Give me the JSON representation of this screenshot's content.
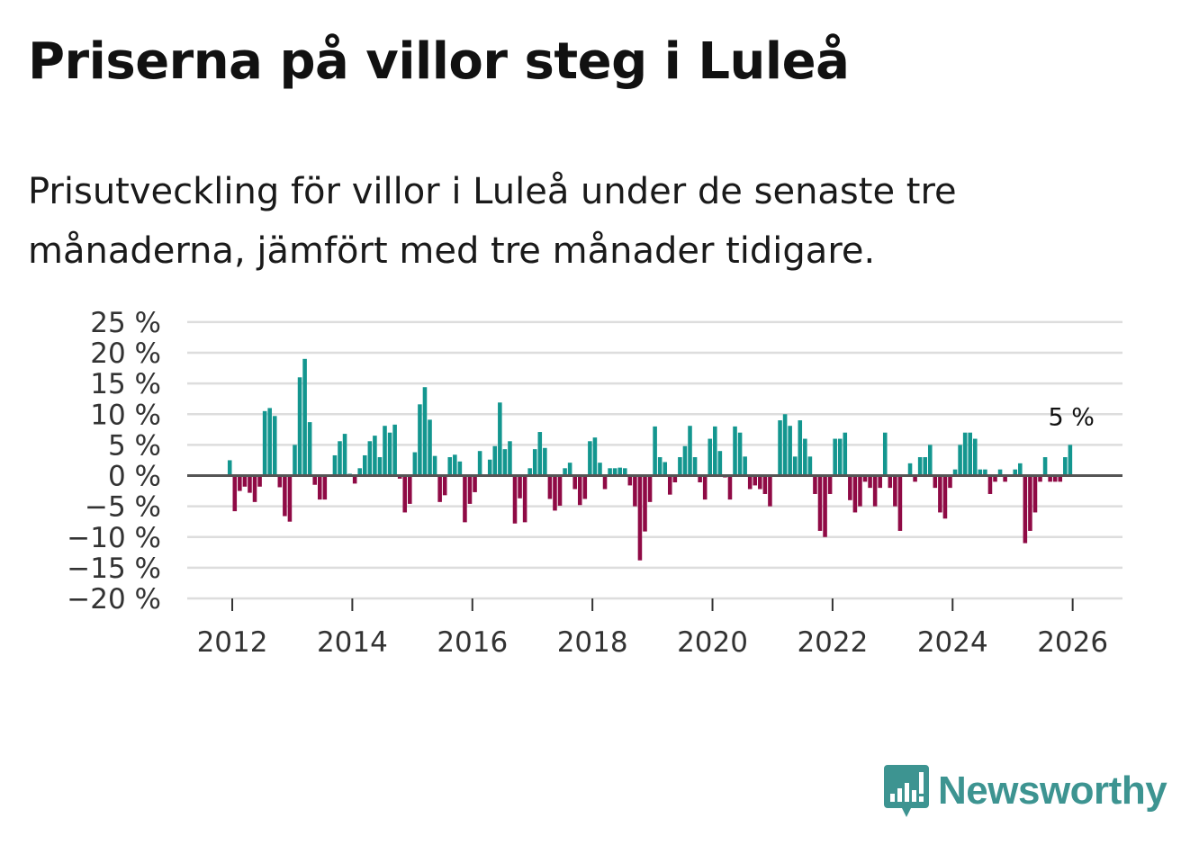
{
  "title": "Priserna på villor steg i Luleå",
  "subtitle": "Prisutveckling för villor i Luleå under de senaste tre månaderna, jämfört med tre månader tidigare.",
  "brand": {
    "name": "Newsworthy",
    "icon": "newsworthy-logo-icon",
    "color": "#3d9491"
  },
  "colors": {
    "positive": "#13968f",
    "negative": "#8f0a45",
    "zero_line": "#555555",
    "grid": "#dddddd"
  },
  "chart_data": {
    "type": "bar",
    "title": "Priserna på villor steg i Luleå",
    "xlabel": "",
    "ylabel": "",
    "ylim": [
      -20,
      25
    ],
    "y_ticks": [
      -20,
      -15,
      -10,
      -5,
      0,
      5,
      10,
      15,
      20,
      25
    ],
    "y_tick_labels": [
      "−20 %",
      "−15 %",
      "−10 %",
      "−5 %",
      "0 %",
      "5 %",
      "10 %",
      "15 %",
      "20 %",
      "25 %"
    ],
    "x_ticks": [
      2012,
      2014,
      2016,
      2018,
      2020,
      2022,
      2024,
      2026
    ],
    "x_tick_labels": [
      "2012",
      "2014",
      "2016",
      "2018",
      "2020",
      "2022",
      "2024",
      "2026"
    ],
    "x_range": [
      2011.25,
      2026.83
    ],
    "grid": true,
    "start": {
      "year": 2011,
      "month": 12
    },
    "annotation": {
      "text": "5 %",
      "target": "last"
    },
    "values": [
      2.5,
      -5.8,
      -2.5,
      -1.8,
      -2.8,
      -4.3,
      -1.8,
      10.5,
      11.0,
      9.7,
      -1.9,
      -6.6,
      -7.5,
      5.0,
      16.0,
      19.0,
      8.7,
      -1.5,
      -3.9,
      -3.9,
      0.1,
      3.3,
      5.6,
      6.8,
      0.3,
      -1.3,
      1.2,
      3.3,
      5.6,
      6.5,
      3.0,
      8.1,
      7.0,
      8.3,
      -0.5,
      -6.0,
      -4.6,
      3.8,
      11.6,
      14.4,
      9.1,
      3.2,
      -4.3,
      -3.2,
      3.0,
      3.4,
      2.3,
      -7.6,
      -4.6,
      -2.7,
      4.0,
      0.2,
      2.6,
      4.8,
      11.9,
      4.3,
      5.6,
      -7.8,
      -3.7,
      -7.6,
      1.2,
      4.3,
      7.1,
      4.5,
      -3.8,
      -5.7,
      -4.9,
      1.2,
      2.1,
      -2.2,
      -4.8,
      -3.8,
      5.6,
      6.2,
      2.1,
      -2.2,
      1.2,
      1.2,
      1.3,
      1.2,
      -1.6,
      -5.0,
      -13.8,
      -9.1,
      -4.3,
      8.0,
      3.0,
      2.2,
      -3.1,
      -1.1,
      3.0,
      4.8,
      8.1,
      3.0,
      -1.1,
      -3.9,
      6.0,
      8.0,
      4.0,
      -0.3,
      -3.9,
      8.0,
      7.0,
      3.1,
      -2.2,
      -1.6,
      -2.2,
      -3.0,
      -5.0,
      0.1,
      9.0,
      10.0,
      8.1,
      3.1,
      9.0,
      6.0,
      3.1,
      -3.0,
      -9.0,
      -10.0,
      -3.0,
      6.0,
      6.0,
      7.0,
      -4.0,
      -6.0,
      -5.0,
      -1.0,
      -2.0,
      -5.0,
      -2.0,
      7.0,
      -2.0,
      -5.0,
      -9.0,
      0.1,
      2.0,
      -1.0,
      3.0,
      3.0,
      5.0,
      -2.0,
      -6.0,
      -7.0,
      -2.0,
      1.0,
      5.0,
      7.0,
      7.0,
      6.0,
      1.0,
      1.0,
      -3.0,
      -1.0,
      1.0,
      -1.0,
      0.1,
      1.0,
      2.0,
      -11.0,
      -9.0,
      -6.0,
      -1.0,
      3.0,
      -1.0,
      -1.0,
      -1.0,
      3.0,
      5.0
    ]
  }
}
